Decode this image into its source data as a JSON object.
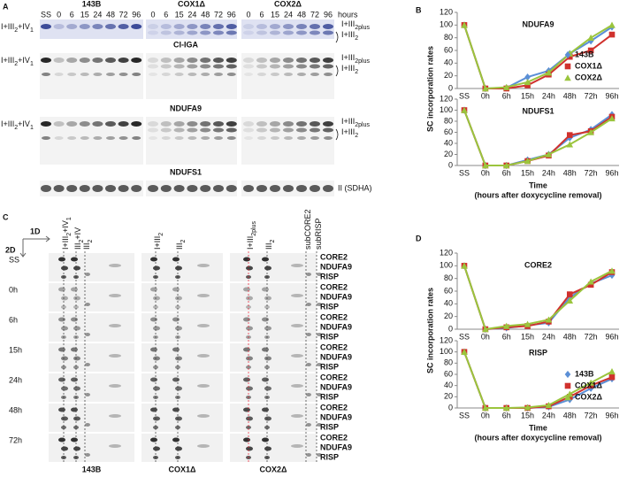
{
  "panel_a": {
    "label": "A",
    "groups": [
      {
        "name": "143B",
        "lanes": [
          "SS",
          "0",
          "6",
          "15",
          "24",
          "48",
          "72",
          "96"
        ]
      },
      {
        "name": "COX1Δ",
        "lanes": [
          "0",
          "6",
          "15",
          "24",
          "48",
          "72",
          "96"
        ]
      },
      {
        "name": "COX2Δ",
        "lanes": [
          "0",
          "6",
          "15",
          "24",
          "48",
          "72",
          "96"
        ]
      }
    ],
    "unit": "hours",
    "highlight_color": "#e8192c",
    "blots": [
      {
        "left": [
          "I+III",
          "2",
          "+IV",
          "1"
        ],
        "right_top": [
          "I+III",
          "2plus"
        ],
        "right_bottom": [
          "I+III",
          "2"
        ]
      },
      {
        "caption": "CI-IGA",
        "left": [
          "I+III",
          "2",
          "+IV",
          "1"
        ],
        "right_top": [
          "I+III",
          "2plus"
        ],
        "right_bottom": [
          "I+III",
          "2"
        ]
      },
      {
        "caption": "NDUFA9",
        "left": [
          "I+III",
          "2",
          "+IV",
          "1"
        ],
        "right_top": [
          "I+III",
          "2plus"
        ],
        "right_bottom": [
          "I+III",
          "2"
        ]
      },
      {
        "caption": "NDUFS1",
        "right": "II (SDHA)"
      }
    ]
  },
  "panel_c": {
    "label": "C",
    "axis_1d": "1D",
    "axis_2d": "2D",
    "columns": [
      {
        "name": "143B",
        "markers": [
          {
            "text": [
              "I+III",
              "2",
              "+IV",
              "1"
            ]
          },
          {
            "text": [
              "III",
              "2",
              "+IV"
            ]
          },
          {
            "text": [
              "III",
              "2"
            ]
          }
        ]
      },
      {
        "name": "COX1Δ",
        "markers": [
          {
            "text": [
              "I+III",
              "2"
            ]
          },
          {
            "text": [
              "III",
              "2"
            ]
          }
        ]
      },
      {
        "name": "COX2Δ",
        "markers": [
          {
            "text": [
              "I+III",
              "2plus"
            ],
            "color": "#e8192c"
          },
          {
            "text": [
              "III",
              "2"
            ]
          },
          {
            "text": [
              "subCORE2"
            ]
          },
          {
            "text": [
              "subRISP"
            ]
          }
        ]
      }
    ],
    "rows": [
      {
        "time": "SS",
        "proteins": [
          "CORE2",
          "NDUFA9",
          "RISP"
        ]
      },
      {
        "time": "0h",
        "proteins": [
          "CORE2",
          "NDUFA9",
          "RISP"
        ]
      },
      {
        "time": "6h",
        "proteins": [
          "CORE2",
          "NDUFA9",
          "RISP"
        ]
      },
      {
        "time": "15h",
        "proteins": [
          "CORE2",
          "NDUFA9",
          "RISP"
        ]
      },
      {
        "time": "24h",
        "proteins": [
          "CORE2",
          "NDUFA9",
          "RISP"
        ]
      },
      {
        "time": "48h",
        "proteins": [
          "CORE2",
          "NDUFA9",
          "RISP"
        ]
      },
      {
        "time": "72h",
        "proteins": [
          "CORE2",
          "NDUFA9",
          "RISP"
        ]
      }
    ]
  },
  "panel_b": {
    "label": "B",
    "y_label": "SC incorporation rates",
    "x_label": "Time",
    "x_note": "(hours after doxycycline removal)"
  },
  "panel_d": {
    "label": "D",
    "y_label": "SC incorporation rates",
    "x_label": "Time",
    "x_note": "(hours after doxycycline removal)"
  },
  "chart_data": [
    {
      "type": "line",
      "title": "NDUFA9",
      "categories": [
        "SS",
        "0h",
        "6h",
        "15h",
        "24h",
        "48h",
        "72h",
        "96h"
      ],
      "ylim": [
        0,
        120
      ],
      "yticks": [
        0,
        20,
        40,
        60,
        80,
        100,
        120
      ],
      "legend": "lower right",
      "series": [
        {
          "name": "143B",
          "color": "#5b8fd6",
          "marker": "diamond",
          "values": [
            100,
            0,
            1,
            18,
            28,
            55,
            75,
            97
          ]
        },
        {
          "name": "COX1Δ",
          "color": "#d0312d",
          "marker": "square",
          "values": [
            100,
            0,
            0,
            5,
            22,
            50,
            60,
            85
          ]
        },
        {
          "name": "COX2Δ",
          "color": "#9bc53d",
          "marker": "triangle",
          "values": [
            100,
            0,
            2,
            10,
            25,
            55,
            80,
            100
          ]
        }
      ]
    },
    {
      "type": "line",
      "title": "NDUFS1",
      "categories": [
        "SS",
        "0h",
        "6h",
        "15h",
        "24h",
        "48h",
        "72h",
        "96h"
      ],
      "ylim": [
        0,
        120
      ],
      "yticks": [
        0,
        20,
        40,
        60,
        80,
        100,
        120
      ],
      "series": [
        {
          "color": "#5b8fd6",
          "marker": "diamond",
          "values": [
            100,
            0,
            0,
            10,
            20,
            50,
            65,
            92
          ]
        },
        {
          "color": "#d0312d",
          "marker": "square",
          "values": [
            100,
            0,
            0,
            8,
            18,
            55,
            62,
            88
          ]
        },
        {
          "color": "#9bc53d",
          "marker": "triangle",
          "values": [
            100,
            0,
            0,
            8,
            20,
            38,
            60,
            85
          ]
        }
      ]
    },
    {
      "type": "line",
      "title": "CORE2",
      "categories": [
        "SS",
        "0h",
        "6h",
        "15h",
        "24h",
        "48h",
        "72h",
        "96h"
      ],
      "ylim": [
        0,
        120
      ],
      "yticks": [
        0,
        20,
        40,
        60,
        80,
        100,
        120
      ],
      "series": [
        {
          "color": "#5b8fd6",
          "marker": "diamond",
          "values": [
            100,
            0,
            2,
            6,
            10,
            50,
            72,
            85
          ]
        },
        {
          "color": "#d0312d",
          "marker": "square",
          "values": [
            100,
            0,
            3,
            5,
            12,
            55,
            70,
            90
          ]
        },
        {
          "color": "#9bc53d",
          "marker": "triangle",
          "values": [
            100,
            0,
            5,
            8,
            15,
            45,
            75,
            92
          ]
        }
      ]
    },
    {
      "type": "line",
      "title": "RISP",
      "categories": [
        "SS",
        "0h",
        "6h",
        "15h",
        "24h",
        "48h",
        "72h",
        "96h"
      ],
      "ylim": [
        0,
        120
      ],
      "yticks": [
        0,
        20,
        40,
        60,
        80,
        100,
        120
      ],
      "legend": "lower right",
      "series": [
        {
          "name": "143B",
          "color": "#5b8fd6",
          "marker": "diamond",
          "values": [
            100,
            0,
            0,
            0,
            2,
            15,
            35,
            52
          ]
        },
        {
          "name": "COX1Δ",
          "color": "#d0312d",
          "marker": "square",
          "values": [
            100,
            0,
            0,
            0,
            3,
            20,
            40,
            55
          ]
        },
        {
          "name": "COX2Δ",
          "color": "#9bc53d",
          "marker": "triangle",
          "values": [
            100,
            0,
            0,
            1,
            5,
            25,
            45,
            65
          ]
        }
      ]
    }
  ]
}
